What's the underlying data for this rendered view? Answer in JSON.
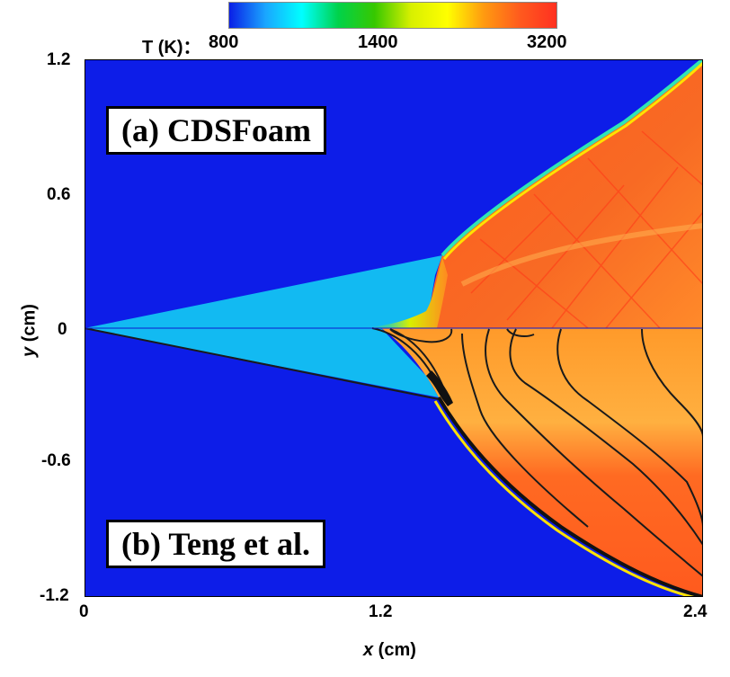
{
  "colorbar": {
    "label": "T (K)：",
    "ticks": [
      "800",
      "1400",
      "3200"
    ],
    "colors": [
      "#0a1fe6",
      "#1aa6ff",
      "#00ffff",
      "#00d24a",
      "#37c800",
      "#d8f000",
      "#ffff00",
      "#ff9a10",
      "#ff5a1e",
      "#ff3020"
    ]
  },
  "axes": {
    "x_title_var": "x",
    "x_title_unit": " (cm)",
    "y_title_var": "y",
    "y_title_unit": " (cm)",
    "x_ticks": [
      "0",
      "1.2",
      "2.4"
    ],
    "y_ticks": [
      "1.2",
      "0.6",
      "0",
      "-0.6",
      "-1.2"
    ]
  },
  "panels": {
    "top_label": "(a)  CDSFoam",
    "bottom_label": "(b)  Teng et al."
  },
  "colors": {
    "ambient": "#0d1de8",
    "wedge": "#12baf2",
    "burnt": "#f25a22",
    "hot": "#ff4420",
    "shock_edge": "#2ee6b4"
  }
}
